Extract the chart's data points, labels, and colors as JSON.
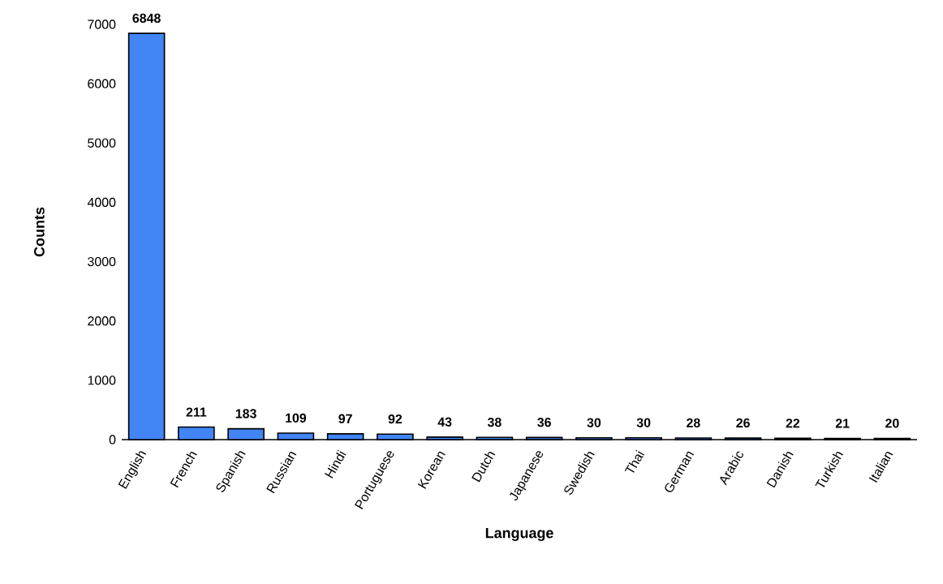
{
  "chart_data": {
    "type": "bar",
    "xlabel": "Language",
    "ylabel": "Counts",
    "categories": [
      "English",
      "French",
      "Spanish",
      "Russian",
      "Hindi",
      "Portuguese",
      "Korean",
      "Dutch",
      "Japanese",
      "Swedish",
      "Thai",
      "German",
      "Arabic",
      "Danish",
      "Turkish",
      "Italian"
    ],
    "values": [
      6848,
      211,
      183,
      109,
      97,
      92,
      43,
      38,
      36,
      30,
      30,
      28,
      26,
      22,
      21,
      20
    ],
    "color": "#4285f4",
    "ylim": [
      0,
      7000
    ],
    "yticks": [
      0,
      1000,
      2000,
      3000,
      4000,
      5000,
      6000,
      7000
    ],
    "data_labels": true
  }
}
